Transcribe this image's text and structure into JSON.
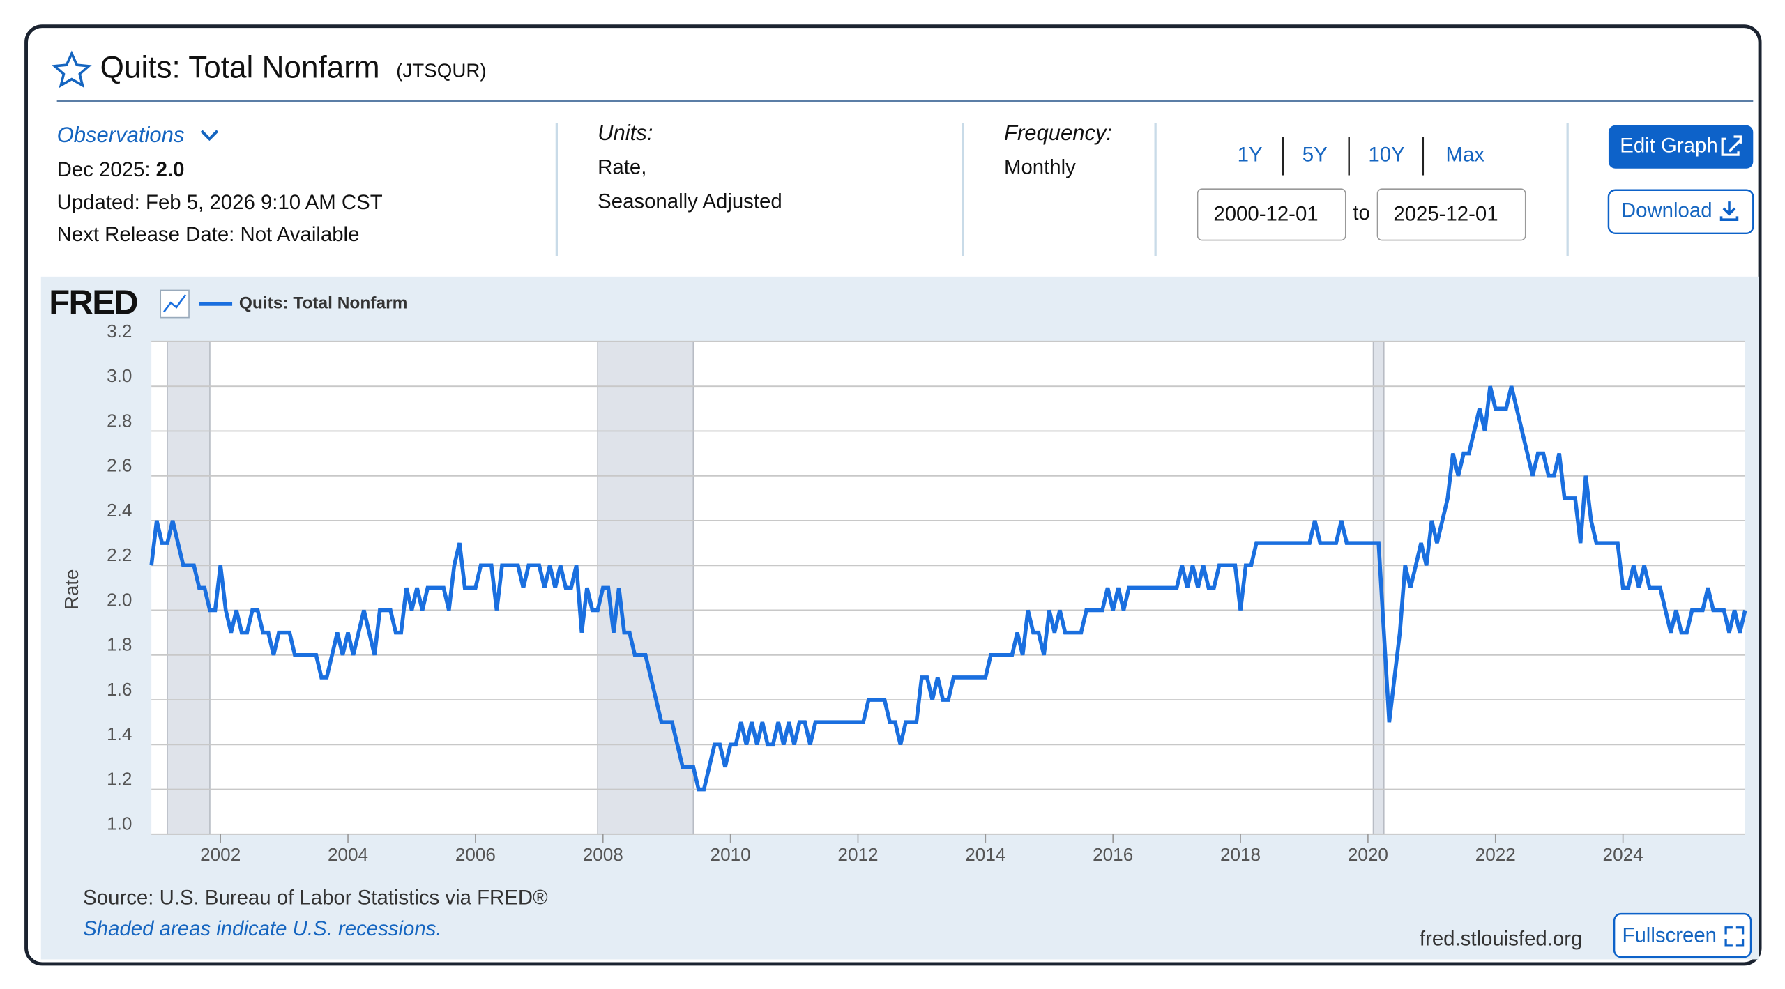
{
  "page": {
    "title": "Quits: Total Nonfarm",
    "series_id": "(JTSQUR)",
    "observations": "Observations",
    "latest_date": "Dec 2025:",
    "latest_value": "2.0",
    "updated": "Updated: Feb 5, 2026 9:10 AM CST",
    "next_release": "Next Release Date: Not Available",
    "units_label": "Units:",
    "units": [
      "Rate,",
      "Seasonally Adjusted"
    ],
    "frequency_label": "Frequency:",
    "frequency": "Monthly",
    "ranges": [
      "1Y",
      "5Y",
      "10Y",
      "Max"
    ],
    "start_date": "2000-12-01",
    "to": "to",
    "end_date": "2025-12-01",
    "edit": "Edit Graph",
    "download": "Download",
    "fullscreen": "Fullscreen",
    "logo": "FRED",
    "source": "Source: U.S. Bureau of Labor Statistics via FRED®",
    "note": "Shaded areas indicate U.S. recessions.",
    "site": "fred.stlouisfed.org"
  },
  "chart_data": {
    "type": "line",
    "ylabel": "Rate",
    "grid": true,
    "xlim": [
      "2000-12",
      "2025-12"
    ],
    "xticks": [
      "2002",
      "2004",
      "2006",
      "2008",
      "2010",
      "2012",
      "2014",
      "2016",
      "2018",
      "2020",
      "2022",
      "2024"
    ],
    "ylim": [
      1.0,
      3.2
    ],
    "yticks": [
      {
        "value": 1,
        "label": "1.0"
      },
      1.2,
      1.4,
      1.6,
      1.8,
      {
        "value": 2,
        "label": "2.0"
      },
      2.2,
      2.4,
      2.6,
      2.8,
      {
        "value": 3,
        "label": "3.0"
      },
      3.2
    ],
    "recessions": [
      [
        "2001-03",
        "2001-11"
      ],
      [
        "2007-12",
        "2009-06"
      ],
      [
        "2020-02",
        "2020-04"
      ]
    ],
    "x": [
      "2000-12",
      "2001-01",
      "2001-02",
      "2001-03",
      "2001-04",
      "2001-05",
      "2001-06",
      "2001-07",
      "2001-08",
      "2001-09",
      "2001-10",
      "2001-11",
      "2001-12",
      "2002-01",
      "2002-02",
      "2002-03",
      "2002-04",
      "2002-05",
      "2002-06",
      "2002-07",
      "2002-08",
      "2002-09",
      "2002-10",
      "2002-11",
      "2002-12",
      "2003-01",
      "2003-02",
      "2003-03",
      "2003-04",
      "2003-05",
      "2003-06",
      "2003-07",
      "2003-08",
      "2003-09",
      "2003-10",
      "2003-11",
      "2003-12",
      "2004-01",
      "2004-02",
      "2004-03",
      "2004-04",
      "2004-05",
      "2004-06",
      "2004-07",
      "2004-08",
      "2004-09",
      "2004-10",
      "2004-11",
      "2004-12",
      "2005-01",
      "2005-02",
      "2005-03",
      "2005-04",
      "2005-05",
      "2005-06",
      "2005-07",
      "2005-08",
      "2005-09",
      "2005-10",
      "2005-11",
      "2005-12",
      "2006-01",
      "2006-02",
      "2006-03",
      "2006-04",
      "2006-05",
      "2006-06",
      "2006-07",
      "2006-08",
      "2006-09",
      "2006-10",
      "2006-11",
      "2006-12",
      "2007-01",
      "2007-02",
      "2007-03",
      "2007-04",
      "2007-05",
      "2007-06",
      "2007-07",
      "2007-08",
      "2007-09",
      "2007-10",
      "2007-11",
      "2007-12",
      "2008-01",
      "2008-02",
      "2008-03",
      "2008-04",
      "2008-05",
      "2008-06",
      "2008-07",
      "2008-08",
      "2008-09",
      "2008-10",
      "2008-11",
      "2008-12",
      "2009-01",
      "2009-02",
      "2009-03",
      "2009-04",
      "2009-05",
      "2009-06",
      "2009-07",
      "2009-08",
      "2009-09",
      "2009-10",
      "2009-11",
      "2009-12",
      "2010-01",
      "2010-02",
      "2010-03",
      "2010-04",
      "2010-05",
      "2010-06",
      "2010-07",
      "2010-08",
      "2010-09",
      "2010-10",
      "2010-11",
      "2010-12",
      "2011-01",
      "2011-02",
      "2011-03",
      "2011-04",
      "2011-05",
      "2011-06",
      "2011-07",
      "2011-08",
      "2011-09",
      "2011-10",
      "2011-11",
      "2011-12",
      "2012-01",
      "2012-02",
      "2012-03",
      "2012-04",
      "2012-05",
      "2012-06",
      "2012-07",
      "2012-08",
      "2012-09",
      "2012-10",
      "2012-11",
      "2012-12",
      "2013-01",
      "2013-02",
      "2013-03",
      "2013-04",
      "2013-05",
      "2013-06",
      "2013-07",
      "2013-08",
      "2013-09",
      "2013-10",
      "2013-11",
      "2013-12",
      "2014-01",
      "2014-02",
      "2014-03",
      "2014-04",
      "2014-05",
      "2014-06",
      "2014-07",
      "2014-08",
      "2014-09",
      "2014-10",
      "2014-11",
      "2014-12",
      "2015-01",
      "2015-02",
      "2015-03",
      "2015-04",
      "2015-05",
      "2015-06",
      "2015-07",
      "2015-08",
      "2015-09",
      "2015-10",
      "2015-11",
      "2015-12",
      "2016-01",
      "2016-02",
      "2016-03",
      "2016-04",
      "2016-05",
      "2016-06",
      "2016-07",
      "2016-08",
      "2016-09",
      "2016-10",
      "2016-11",
      "2016-12",
      "2017-01",
      "2017-02",
      "2017-03",
      "2017-04",
      "2017-05",
      "2017-06",
      "2017-07",
      "2017-08",
      "2017-09",
      "2017-10",
      "2017-11",
      "2017-12",
      "2018-01",
      "2018-02",
      "2018-03",
      "2018-04",
      "2018-05",
      "2018-06",
      "2018-07",
      "2018-08",
      "2018-09",
      "2018-10",
      "2018-11",
      "2018-12",
      "2019-01",
      "2019-02",
      "2019-03",
      "2019-04",
      "2019-05",
      "2019-06",
      "2019-07",
      "2019-08",
      "2019-09",
      "2019-10",
      "2019-11",
      "2019-12",
      "2020-01",
      "2020-02",
      "2020-03",
      "2020-04",
      "2020-05",
      "2020-06",
      "2020-07",
      "2020-08",
      "2020-09",
      "2020-10",
      "2020-11",
      "2020-12",
      "2021-01",
      "2021-02",
      "2021-03",
      "2021-04",
      "2021-05",
      "2021-06",
      "2021-07",
      "2021-08",
      "2021-09",
      "2021-10",
      "2021-11",
      "2021-12",
      "2022-01",
      "2022-02",
      "2022-03",
      "2022-04",
      "2022-05",
      "2022-06",
      "2022-07",
      "2022-08",
      "2022-09",
      "2022-10",
      "2022-11",
      "2022-12",
      "2023-01",
      "2023-02",
      "2023-03",
      "2023-04",
      "2023-05",
      "2023-06",
      "2023-07",
      "2023-08",
      "2023-09",
      "2023-10",
      "2023-11",
      "2023-12",
      "2024-01",
      "2024-02",
      "2024-03",
      "2024-04",
      "2024-05",
      "2024-06",
      "2024-07",
      "2024-08",
      "2024-09",
      "2024-10",
      "2024-11",
      "2024-12",
      "2025-01",
      "2025-02",
      "2025-03",
      "2025-04",
      "2025-05",
      "2025-06",
      "2025-07",
      "2025-08",
      "2025-09",
      "2025-10",
      "2025-11",
      "2025-12"
    ],
    "series": [
      {
        "name": "Quits: Total Nonfarm",
        "color": "#1a6fdf",
        "values": [
          2.2,
          2.4,
          2.3,
          2.3,
          2.4,
          2.3,
          2.2,
          2.2,
          2.2,
          2.1,
          2.1,
          2.0,
          2.0,
          2.2,
          2.0,
          1.9,
          2.0,
          1.9,
          1.9,
          2.0,
          2.0,
          1.9,
          1.9,
          1.8,
          1.9,
          1.9,
          1.9,
          1.8,
          1.8,
          1.8,
          1.8,
          1.8,
          1.7,
          1.7,
          1.8,
          1.9,
          1.8,
          1.9,
          1.8,
          1.9,
          2.0,
          1.9,
          1.8,
          2.0,
          2.0,
          2.0,
          1.9,
          1.9,
          2.1,
          2.0,
          2.1,
          2.0,
          2.1,
          2.1,
          2.1,
          2.1,
          2.0,
          2.2,
          2.3,
          2.1,
          2.1,
          2.1,
          2.2,
          2.2,
          2.2,
          2.0,
          2.2,
          2.2,
          2.2,
          2.2,
          2.1,
          2.2,
          2.2,
          2.2,
          2.1,
          2.2,
          2.1,
          2.2,
          2.1,
          2.1,
          2.2,
          1.9,
          2.1,
          2.0,
          2.0,
          2.1,
          2.1,
          1.9,
          2.1,
          1.9,
          1.9,
          1.8,
          1.8,
          1.8,
          1.7,
          1.6,
          1.5,
          1.5,
          1.5,
          1.4,
          1.3,
          1.3,
          1.3,
          1.2,
          1.2,
          1.3,
          1.4,
          1.4,
          1.3,
          1.4,
          1.4,
          1.5,
          1.4,
          1.5,
          1.4,
          1.5,
          1.4,
          1.4,
          1.5,
          1.4,
          1.5,
          1.4,
          1.5,
          1.5,
          1.4,
          1.5,
          1.5,
          1.5,
          1.5,
          1.5,
          1.5,
          1.5,
          1.5,
          1.5,
          1.5,
          1.6,
          1.6,
          1.6,
          1.6,
          1.5,
          1.5,
          1.4,
          1.5,
          1.5,
          1.5,
          1.7,
          1.7,
          1.6,
          1.7,
          1.6,
          1.6,
          1.7,
          1.7,
          1.7,
          1.7,
          1.7,
          1.7,
          1.7,
          1.8,
          1.8,
          1.8,
          1.8,
          1.8,
          1.9,
          1.8,
          2.0,
          1.9,
          1.9,
          1.8,
          2.0,
          1.9,
          2.0,
          1.9,
          1.9,
          1.9,
          1.9,
          2.0,
          2.0,
          2.0,
          2.0,
          2.1,
          2.0,
          2.1,
          2.0,
          2.1,
          2.1,
          2.1,
          2.1,
          2.1,
          2.1,
          2.1,
          2.1,
          2.1,
          2.1,
          2.2,
          2.1,
          2.2,
          2.1,
          2.2,
          2.1,
          2.1,
          2.2,
          2.2,
          2.2,
          2.2,
          2.0,
          2.2,
          2.2,
          2.3,
          2.3,
          2.3,
          2.3,
          2.3,
          2.3,
          2.3,
          2.3,
          2.3,
          2.3,
          2.3,
          2.4,
          2.3,
          2.3,
          2.3,
          2.3,
          2.4,
          2.3,
          2.3,
          2.3,
          2.3,
          2.3,
          2.3,
          2.3,
          1.9,
          1.5,
          1.7,
          1.9,
          2.2,
          2.1,
          2.2,
          2.3,
          2.2,
          2.4,
          2.3,
          2.4,
          2.5,
          2.7,
          2.6,
          2.7,
          2.7,
          2.8,
          2.9,
          2.8,
          3.0,
          2.9,
          2.9,
          2.9,
          3.0,
          2.9,
          2.8,
          2.7,
          2.6,
          2.7,
          2.7,
          2.6,
          2.6,
          2.7,
          2.5,
          2.5,
          2.5,
          2.3,
          2.6,
          2.4,
          2.3,
          2.3,
          2.3,
          2.3,
          2.3,
          2.1,
          2.1,
          2.2,
          2.1,
          2.2,
          2.1,
          2.1,
          2.1,
          2.0,
          1.9,
          2.0,
          1.9,
          1.9,
          2.0,
          2.0,
          2.0,
          2.1,
          2.0,
          2.0,
          2.0,
          1.9,
          2.0,
          1.9,
          2.0
        ]
      }
    ]
  }
}
